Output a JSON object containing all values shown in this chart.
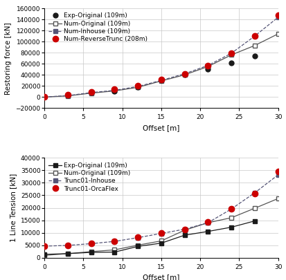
{
  "upper": {
    "xlabel": "Offset [m]",
    "ylabel": "Restoring force [kN]",
    "ylim": [
      -20000,
      160000
    ],
    "xlim": [
      0,
      30
    ],
    "yticks": [
      -20000,
      0,
      20000,
      40000,
      60000,
      80000,
      100000,
      120000,
      140000,
      160000
    ],
    "xticks": [
      0,
      5,
      10,
      15,
      20,
      25,
      30
    ],
    "exp_original": {
      "x": [
        0,
        3,
        6,
        9,
        12,
        15,
        18,
        21,
        24,
        27
      ],
      "y": [
        0,
        3500,
        8500,
        10000,
        18000,
        30000,
        40000,
        50000,
        61000,
        74000
      ],
      "color": "#1a1a1a",
      "marker": "o",
      "markersize": 5,
      "label": "Exp-Original (109m)",
      "linestyle": "none"
    },
    "num_original": {
      "x": [
        0,
        3,
        6,
        9,
        12,
        15,
        18,
        21,
        24,
        27,
        30
      ],
      "y": [
        0,
        2000,
        7000,
        11000,
        17500,
        29000,
        40000,
        55000,
        76000,
        93000,
        114000
      ],
      "color": "#555555",
      "marker": "s",
      "markersize": 5,
      "markerfacecolor": "white",
      "markeredgecolor": "#555555",
      "label": "Num-Original (109m)",
      "linestyle": "-"
    },
    "num_inhouse": {
      "x": [
        0,
        3,
        6,
        9,
        12,
        15,
        18,
        21,
        24,
        27,
        30
      ],
      "y": [
        0,
        2500,
        8000,
        12000,
        19000,
        30000,
        42000,
        57000,
        79000,
        110000,
        144000
      ],
      "color": "#555577",
      "marker": "s",
      "markersize": 5,
      "markerfacecolor": "#555577",
      "label": "Num-Inhouse (109m)",
      "linestyle": "--"
    },
    "num_reversetrunc": {
      "x": [
        0,
        3,
        6,
        9,
        12,
        15,
        18,
        21,
        24,
        27,
        30
      ],
      "y": [
        0,
        4000,
        9000,
        13500,
        20500,
        31000,
        41000,
        56000,
        79000,
        110000,
        148000
      ],
      "color": "#cc0000",
      "marker": "o",
      "markersize": 6,
      "label": "Num-ReverseTrunc (208m)",
      "linestyle": "none"
    }
  },
  "lower": {
    "xlabel": "Offset [m]",
    "ylabel": "1 Line Tension [kN]",
    "ylim": [
      0,
      40000
    ],
    "xlim": [
      0,
      30
    ],
    "yticks": [
      0,
      5000,
      10000,
      15000,
      20000,
      25000,
      30000,
      35000,
      40000
    ],
    "xticks": [
      0,
      5,
      10,
      15,
      20,
      25,
      30
    ],
    "exp_original": {
      "x": [
        0,
        3,
        6,
        9,
        12,
        15,
        18,
        21,
        24,
        27
      ],
      "y": [
        1300,
        1600,
        2100,
        2200,
        4500,
        5800,
        9000,
        10500,
        12200,
        14700
      ],
      "color": "#1a1a1a",
      "marker": "s",
      "markersize": 5,
      "label": "Exp-Original (109m)",
      "linestyle": "-"
    },
    "num_original": {
      "x": [
        0,
        3,
        6,
        9,
        12,
        15,
        18,
        21,
        24,
        27,
        30
      ],
      "y": [
        900,
        1600,
        2400,
        3100,
        5000,
        6700,
        11000,
        14000,
        16000,
        19800,
        23700
      ],
      "color": "#555555",
      "marker": "s",
      "markersize": 5,
      "markerfacecolor": "white",
      "markeredgecolor": "#555555",
      "label": "Num-Original (109m)",
      "linestyle": "-"
    },
    "trunc01_inhouse": {
      "x": [
        0,
        3,
        6,
        9,
        12,
        15,
        18,
        21,
        24,
        27,
        30
      ],
      "y": [
        4600,
        4900,
        5600,
        6500,
        8000,
        9700,
        11400,
        14000,
        19500,
        26000,
        33200
      ],
      "color": "#555577",
      "marker": "s",
      "markersize": 5,
      "markerfacecolor": "#555577",
      "label": "Trunc01-Inhouse",
      "linestyle": "--"
    },
    "trunc01_orcaflex": {
      "x": [
        0,
        3,
        6,
        9,
        12,
        15,
        18,
        21,
        24,
        27,
        30
      ],
      "y": [
        4600,
        5000,
        5700,
        6600,
        8100,
        9900,
        11400,
        14200,
        19700,
        25800,
        34700
      ],
      "color": "#cc0000",
      "marker": "o",
      "markersize": 6,
      "label": "Trunc01-OrcaFlex",
      "linestyle": "none"
    }
  },
  "background_color": "#ffffff",
  "grid_color": "#c8c8c8",
  "tick_fontsize": 6.5,
  "label_fontsize": 7.5,
  "legend_fontsize": 6.5
}
